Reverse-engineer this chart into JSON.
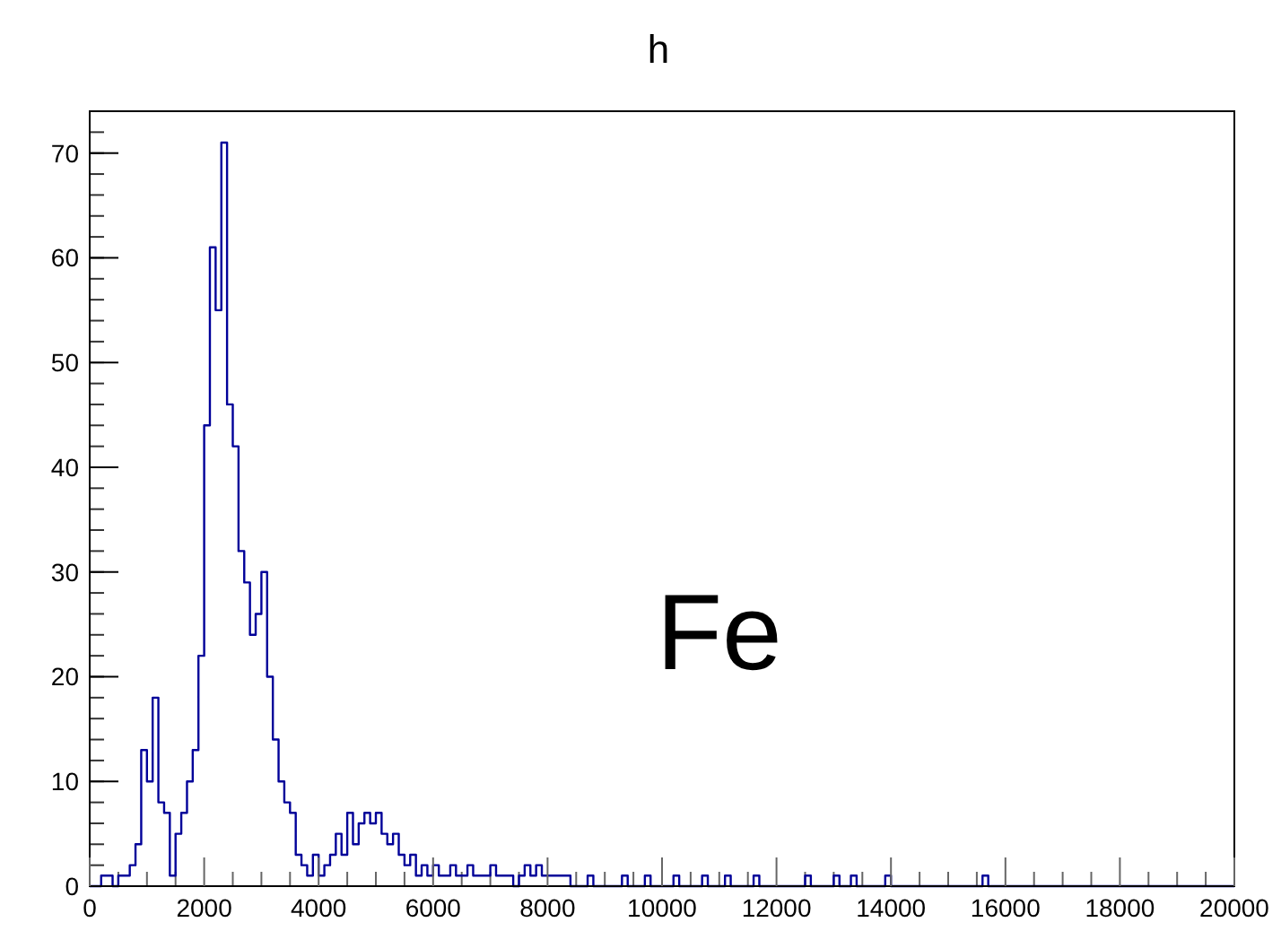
{
  "chart_data": {
    "type": "histogram",
    "title": "h",
    "color": "#000099",
    "bins": [
      0,
      100,
      200,
      300,
      400,
      500,
      600,
      700,
      800,
      900,
      1000,
      1100,
      1200,
      1300,
      1400,
      1500,
      1600,
      1700,
      1800,
      1900,
      2000,
      2100,
      2200,
      2300,
      2400,
      2500,
      2600,
      2700,
      2800,
      2900,
      3000,
      3100,
      3200,
      3300,
      3400,
      3500,
      3600,
      3700,
      3800,
      3900,
      4000,
      4100,
      4200,
      4300,
      4400,
      4500,
      4600,
      4700,
      4800,
      4900,
      5000,
      5100,
      5200,
      5300,
      5400,
      5500,
      5600,
      5700,
      5800,
      5900,
      6000,
      6100,
      6200,
      6300,
      6400,
      6500,
      6600,
      6700,
      6800,
      6900,
      7000,
      7100,
      7200,
      7300,
      7400,
      7500,
      7600,
      7700,
      7800,
      7900,
      8000,
      8100,
      8200,
      8300,
      8400,
      8500,
      8600,
      8700,
      8800,
      8900,
      9000,
      9100,
      9200,
      9300,
      9400,
      9500,
      9600,
      9700,
      9800,
      9900,
      10000,
      10100,
      10200,
      10300,
      10400,
      10500,
      10600,
      10700,
      10800,
      10900,
      11000,
      11100,
      11200,
      11300,
      11400,
      11500,
      11600,
      11700,
      11800,
      11900,
      12000,
      12100,
      12200,
      12300,
      12400,
      12500,
      12600,
      12700,
      12800,
      12900,
      13000,
      13100,
      13200,
      13300,
      13400,
      13500,
      13600,
      13700,
      13800,
      13900,
      14000,
      14100,
      14200,
      14300,
      14400,
      14500,
      14600,
      14700,
      14800,
      14900,
      15000,
      15100,
      15200,
      15300,
      15400,
      15500,
      15600,
      15700,
      15800,
      15900,
      16000,
      16100,
      16200,
      16300,
      16400,
      16500,
      16600,
      16700,
      16800,
      16900,
      17000,
      17100,
      17200,
      17300,
      17400,
      17500,
      17600,
      17700,
      17800,
      17900,
      18000,
      18100,
      18200,
      18300,
      18400,
      18500,
      18600,
      18700,
      18800,
      18900,
      19000,
      19100,
      19200,
      19300,
      19400,
      19500,
      19600,
      19700,
      19800,
      19900,
      20000
    ],
    "values": [
      0,
      0,
      1,
      1,
      0,
      1,
      1,
      2,
      4,
      13,
      10,
      18,
      8,
      7,
      1,
      5,
      7,
      10,
      13,
      22,
      44,
      61,
      55,
      71,
      46,
      42,
      32,
      29,
      24,
      26,
      30,
      20,
      14,
      10,
      8,
      7,
      3,
      2,
      1,
      3,
      1,
      2,
      3,
      5,
      3,
      7,
      4,
      6,
      7,
      6,
      7,
      5,
      4,
      5,
      3,
      2,
      3,
      1,
      2,
      1,
      2,
      1,
      1,
      2,
      1,
      1,
      2,
      1,
      1,
      1,
      2,
      1,
      1,
      1,
      0,
      1,
      2,
      1,
      2,
      1,
      1,
      1,
      1,
      1,
      0,
      0,
      0,
      1,
      0,
      0,
      0,
      0,
      0,
      1,
      0,
      0,
      0,
      1,
      0,
      0,
      0,
      0,
      1,
      0,
      0,
      0,
      0,
      1,
      0,
      0,
      0,
      1,
      0,
      0,
      0,
      0,
      1,
      0,
      0,
      0,
      0,
      0,
      0,
      0,
      0,
      1,
      0,
      0,
      0,
      0,
      1,
      0,
      0,
      1,
      0,
      0,
      0,
      0,
      0,
      1,
      0,
      0,
      0,
      0,
      0,
      0,
      0,
      0,
      0,
      0,
      0,
      0,
      0,
      0,
      0,
      0,
      1,
      0,
      0,
      0,
      0,
      0,
      0,
      0,
      0,
      0,
      0,
      0,
      0,
      0,
      0,
      0,
      0,
      0,
      0,
      0,
      0,
      0,
      0,
      0,
      0,
      0,
      0,
      0,
      0,
      0,
      0,
      0,
      0,
      0,
      0,
      0,
      0,
      0,
      0,
      0,
      0,
      0,
      0,
      0
    ],
    "xlim": [
      0,
      20000
    ],
    "ylim": [
      0,
      74
    ],
    "xticks": [
      0,
      2000,
      4000,
      6000,
      8000,
      10000,
      12000,
      14000,
      16000,
      18000,
      20000
    ],
    "yticks": [
      0,
      10,
      20,
      30,
      40,
      50,
      60,
      70
    ],
    "annotations": [
      "Fe"
    ]
  }
}
